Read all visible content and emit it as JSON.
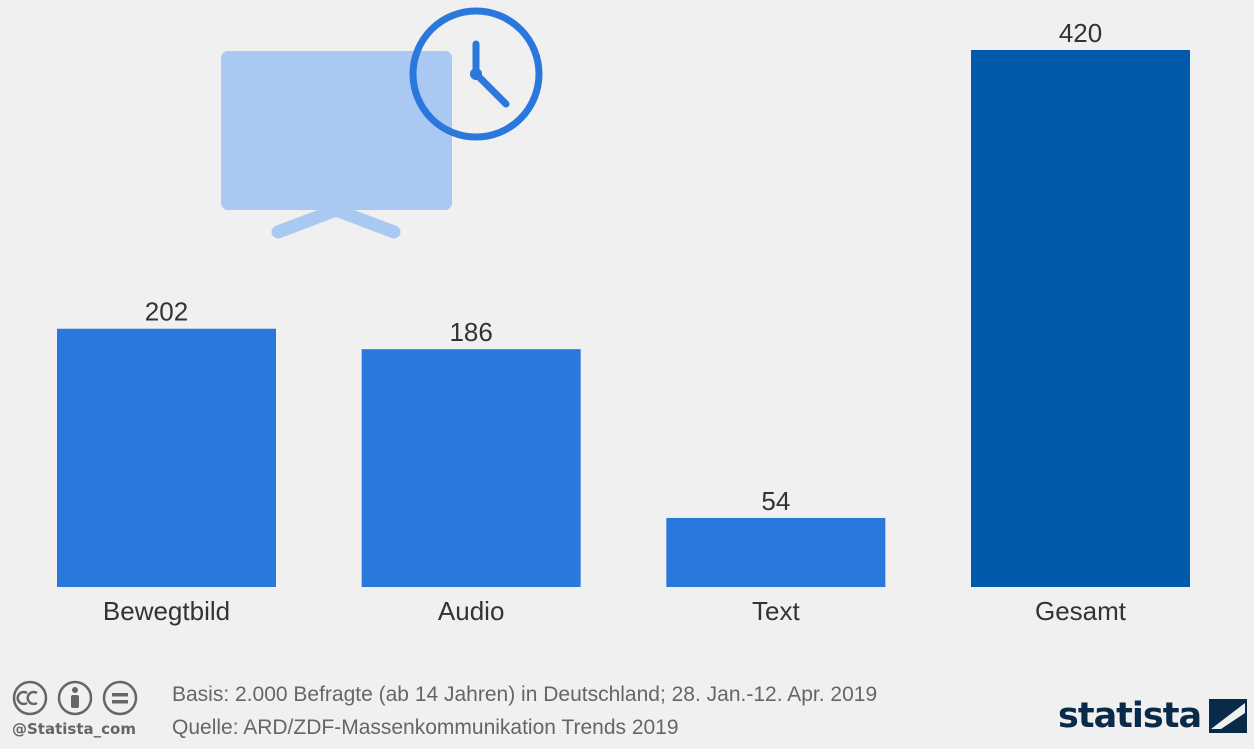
{
  "chart_data": {
    "type": "bar",
    "categories": [
      "Bewegtbild",
      "Audio",
      "Text",
      "Gesamt"
    ],
    "values": [
      202,
      186,
      54,
      420
    ],
    "value_labels": [
      "202",
      "186",
      "54",
      "420"
    ],
    "title": "",
    "xlabel": "",
    "ylabel": "",
    "ylim": [
      0,
      420
    ],
    "grid": false,
    "legend": "none",
    "colors": [
      "#2a78dc",
      "#2a78dc",
      "#2a78dc",
      "#005bac"
    ]
  },
  "illustration": {
    "icon": "tv-clock-icon",
    "screen_color": "#a9c8f2",
    "clock_color": "#2a78dc"
  },
  "footer": {
    "basis": "Basis: 2.000 Befragte (ab 14 Jahren) in Deutschland; 28. Jan.-12. Apr. 2019",
    "source": "Quelle: ARD/ZDF-Massenkommunikation Trends 2019",
    "handle": "@Statista_com",
    "brand": "statista",
    "license_icons": [
      "cc-icon",
      "attribution-icon",
      "no-derivatives-icon"
    ]
  }
}
